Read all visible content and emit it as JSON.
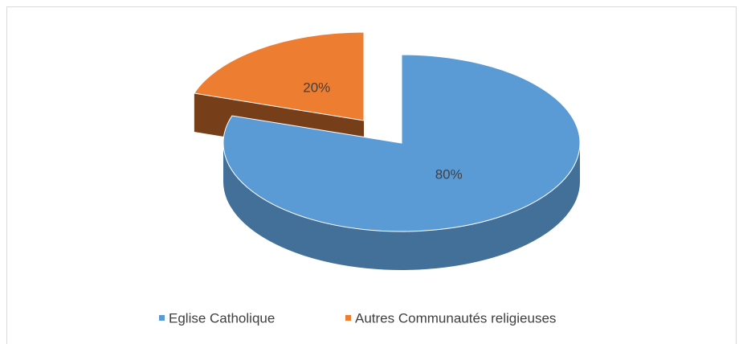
{
  "chart_data": {
    "type": "pie",
    "categories": [
      "Eglise Catholique",
      "Autres Communautés religieuses"
    ],
    "values": [
      80,
      20
    ],
    "value_labels": [
      "80%",
      "20%"
    ],
    "colors": [
      "#5b9bd5",
      "#ed7d31"
    ],
    "legend": "bottom"
  }
}
